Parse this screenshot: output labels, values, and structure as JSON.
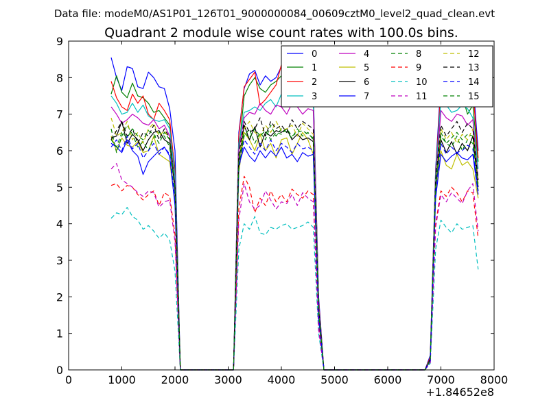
{
  "chart_data": {
    "type": "line",
    "suptitle": "Data file: modeM0/AS1P01_126T01_9000000084_00609cztM0_level2_quad_clean.evt",
    "title": "Quadrant 2 module wise count rates with 100.0s bins.",
    "xlabel": "",
    "ylabel": "",
    "x_offset_label": "+1.84652e8",
    "xlim": [
      0,
      8000
    ],
    "ylim": [
      0,
      9
    ],
    "xticks": [
      "0",
      "1000",
      "2000",
      "3000",
      "4000",
      "5000",
      "6000",
      "7000",
      "8000"
    ],
    "yticks": [
      "0",
      "1",
      "2",
      "3",
      "4",
      "5",
      "6",
      "7",
      "8",
      "9"
    ],
    "legend_position": "top-right",
    "colors": [
      "#0000ff",
      "#008000",
      "#ff0000",
      "#00bfbf",
      "#bf00bf",
      "#bfbf00",
      "#000000"
    ],
    "x": [
      800,
      900,
      1000,
      1100,
      1200,
      1300,
      1400,
      1500,
      1600,
      1700,
      1800,
      1900,
      2000,
      2100,
      2200,
      2300,
      2400,
      2500,
      2600,
      2700,
      2800,
      2900,
      3000,
      3100,
      3200,
      3300,
      3400,
      3500,
      3600,
      3700,
      3800,
      3900,
      4000,
      4100,
      4200,
      4300,
      4400,
      4500,
      4600,
      4700,
      4800,
      4900,
      5000,
      5100,
      5200,
      5300,
      5400,
      5500,
      5600,
      5700,
      5800,
      5900,
      6000,
      6100,
      6200,
      6300,
      6400,
      6500,
      6600,
      6700,
      6800,
      6900,
      7000,
      7100,
      7200,
      7300,
      7400,
      7500,
      7600,
      7700
    ],
    "series": [
      {
        "name": "0",
        "values": [
          8.55,
          8.0,
          7.65,
          8.3,
          8.25,
          7.75,
          7.7,
          8.15,
          8.0,
          7.75,
          7.7,
          7.15,
          6.0,
          0.0,
          0,
          0,
          0,
          0,
          0,
          0,
          0,
          0,
          0,
          0,
          6.5,
          7.7,
          8.1,
          8.2,
          7.8,
          8.05,
          7.9,
          8.0,
          8.3,
          8.05,
          8.5,
          7.9,
          8.2,
          7.95,
          7.7,
          2.0,
          0,
          0,
          0,
          0,
          0,
          0,
          0,
          0,
          0,
          0,
          0,
          0,
          0,
          0,
          0,
          0,
          0,
          0,
          0,
          0,
          0.4,
          5.5,
          7.9,
          7.9,
          7.5,
          7.4,
          7.9,
          7.7,
          7.95,
          6.0
        ]
      },
      {
        "name": "1",
        "values": [
          7.55,
          8.05,
          7.6,
          7.45,
          7.85,
          7.5,
          7.45,
          7.3,
          7.05,
          7.1,
          6.9,
          6.7,
          5.5,
          0.0,
          0,
          0,
          0,
          0,
          0,
          0,
          0,
          0,
          0,
          0,
          6.0,
          7.5,
          7.8,
          8.0,
          7.7,
          7.6,
          7.8,
          7.9,
          8.05,
          7.8,
          8.0,
          7.85,
          7.95,
          7.8,
          7.5,
          1.8,
          0,
          0,
          0,
          0,
          0,
          0,
          0,
          0,
          0,
          0,
          0,
          0,
          0,
          0,
          0,
          0,
          0,
          0,
          0,
          0,
          0.3,
          5.2,
          7.55,
          7.45,
          7.2,
          7.3,
          7.5,
          7.0,
          7.25,
          5.7
        ]
      },
      {
        "name": "2",
        "values": [
          7.9,
          7.45,
          7.2,
          7.1,
          7.55,
          7.3,
          7.5,
          7.0,
          6.85,
          7.3,
          7.1,
          6.85,
          5.4,
          0.0,
          0,
          0,
          0,
          0,
          0,
          0,
          0,
          0,
          0,
          0,
          6.4,
          7.75,
          7.95,
          8.15,
          7.25,
          7.4,
          7.6,
          7.8,
          8.35,
          7.95,
          8.05,
          7.9,
          8.15,
          7.9,
          7.6,
          1.9,
          0,
          0,
          0,
          0,
          0,
          0,
          0,
          0,
          0,
          0,
          0,
          0,
          0,
          0,
          0,
          0,
          0,
          0,
          0,
          0,
          0.35,
          5.4,
          7.7,
          7.6,
          7.3,
          7.4,
          7.55,
          7.45,
          7.7,
          5.8
        ]
      },
      {
        "name": "3",
        "values": [
          7.5,
          7.3,
          7.0,
          7.05,
          7.3,
          7.05,
          7.25,
          6.95,
          6.85,
          6.8,
          6.85,
          6.6,
          5.3,
          0.0,
          0,
          0,
          0,
          0,
          0,
          0,
          0,
          0,
          0,
          0,
          6.2,
          7.05,
          7.1,
          7.2,
          7.1,
          7.3,
          7.4,
          7.2,
          7.55,
          7.3,
          7.6,
          7.4,
          7.7,
          7.55,
          7.45,
          1.8,
          0,
          0,
          0,
          0,
          0,
          0,
          0,
          0,
          0,
          0,
          0,
          0,
          0,
          0,
          0,
          0,
          0,
          0,
          0,
          0,
          0.3,
          5.3,
          7.4,
          7.25,
          7.05,
          7.1,
          7.25,
          7.15,
          6.9,
          5.5
        ]
      },
      {
        "name": "4",
        "values": [
          7.2,
          7.0,
          6.75,
          6.85,
          7.0,
          6.9,
          6.75,
          6.7,
          6.85,
          6.6,
          6.7,
          6.4,
          5.1,
          0.0,
          0,
          0,
          0,
          0,
          0,
          0,
          0,
          0,
          0,
          0,
          6.0,
          6.9,
          7.05,
          7.0,
          7.3,
          7.1,
          7.0,
          7.25,
          7.2,
          7.0,
          7.3,
          7.2,
          7.0,
          7.15,
          7.1,
          1.7,
          0,
          0,
          0,
          0,
          0,
          0,
          0,
          0,
          0,
          0,
          0,
          0,
          0,
          0,
          0,
          0,
          0,
          0,
          0,
          0,
          0.3,
          5.1,
          7.1,
          6.9,
          6.8,
          7.0,
          6.95,
          6.7,
          6.85,
          5.2
        ]
      },
      {
        "name": "5",
        "values": [
          6.4,
          6.0,
          6.35,
          6.15,
          6.1,
          6.25,
          5.95,
          6.0,
          6.4,
          5.9,
          5.8,
          5.7,
          4.6,
          0.0,
          0,
          0,
          0,
          0,
          0,
          0,
          0,
          0,
          0,
          0,
          5.4,
          6.5,
          6.3,
          6.0,
          6.45,
          6.0,
          6.2,
          5.8,
          6.3,
          6.35,
          5.9,
          6.2,
          6.5,
          6.3,
          5.9,
          1.5,
          0,
          0,
          0,
          0,
          0,
          0,
          0,
          0,
          0,
          0,
          0,
          0,
          0,
          0,
          0,
          0,
          0,
          0,
          0,
          0,
          0.25,
          4.8,
          6.0,
          5.6,
          5.5,
          5.9,
          5.6,
          5.7,
          5.5,
          4.7
        ]
      },
      {
        "name": "6",
        "values": [
          6.35,
          6.4,
          6.8,
          6.2,
          6.45,
          6.3,
          6.0,
          6.3,
          6.5,
          6.55,
          6.3,
          6.2,
          4.9,
          0.0,
          0,
          0,
          0,
          0,
          0,
          0,
          0,
          0,
          0,
          0,
          5.7,
          6.7,
          6.3,
          6.65,
          6.1,
          6.5,
          6.4,
          6.55,
          6.5,
          6.6,
          6.3,
          6.45,
          6.3,
          6.35,
          6.25,
          1.6,
          0,
          0,
          0,
          0,
          0,
          0,
          0,
          0,
          0,
          0,
          0,
          0,
          0,
          0,
          0,
          0,
          0,
          0,
          0,
          0,
          0.28,
          5.0,
          6.3,
          5.95,
          6.25,
          5.9,
          6.2,
          6.0,
          6.4,
          5.0
        ]
      },
      {
        "name": "7",
        "values": [
          6.2,
          6.1,
          5.95,
          6.3,
          6.0,
          5.85,
          5.35,
          5.7,
          5.85,
          6.0,
          6.1,
          5.85,
          4.5,
          0.0,
          0,
          0,
          0,
          0,
          0,
          0,
          0,
          0,
          0,
          0,
          5.6,
          6.1,
          5.85,
          5.7,
          6.0,
          5.8,
          6.0,
          5.85,
          6.1,
          5.8,
          5.9,
          5.7,
          5.95,
          5.85,
          5.9,
          1.4,
          0,
          0,
          0,
          0,
          0,
          0,
          0,
          0,
          0,
          0,
          0,
          0,
          0,
          0,
          0,
          0,
          0,
          0,
          0,
          0,
          0.25,
          4.7,
          5.9,
          5.7,
          5.85,
          5.95,
          5.8,
          5.75,
          5.9,
          4.8
        ]
      },
      {
        "name": "8",
        "values": [
          6.6,
          5.95,
          6.4,
          6.7,
          6.45,
          6.1,
          6.25,
          6.0,
          6.35,
          6.5,
          6.4,
          6.1,
          4.9,
          0.0,
          0,
          0,
          0,
          0,
          0,
          0,
          0,
          0,
          0,
          0,
          5.6,
          6.4,
          6.6,
          6.2,
          6.5,
          6.3,
          6.7,
          6.4,
          6.6,
          6.5,
          6.35,
          6.6,
          6.4,
          6.5,
          6.3,
          1.6,
          0,
          0,
          0,
          0,
          0,
          0,
          0,
          0,
          0,
          0,
          0,
          0,
          0,
          0,
          0,
          0,
          0,
          0,
          0,
          0,
          0.28,
          5.0,
          6.5,
          6.2,
          6.1,
          6.4,
          6.0,
          6.3,
          6.2,
          4.9
        ]
      },
      {
        "name": "9",
        "values": [
          5.05,
          5.1,
          4.9,
          5.05,
          5.0,
          4.8,
          4.65,
          4.8,
          4.9,
          4.5,
          4.85,
          4.75,
          3.7,
          0.0,
          0,
          0,
          0,
          0,
          0,
          0,
          0,
          0,
          0,
          0,
          4.4,
          5.3,
          5.0,
          4.3,
          4.7,
          4.5,
          4.9,
          4.6,
          4.8,
          4.6,
          4.95,
          4.8,
          4.7,
          4.9,
          4.8,
          1.2,
          0,
          0,
          0,
          0,
          0,
          0,
          0,
          0,
          0,
          0,
          0,
          0,
          0,
          0,
          0,
          0,
          0,
          0,
          0,
          0,
          0.2,
          4.0,
          4.9,
          4.75,
          5.0,
          4.85,
          4.6,
          4.9,
          4.85,
          3.6
        ]
      },
      {
        "name": "10",
        "values": [
          4.15,
          4.3,
          4.25,
          4.45,
          4.2,
          4.1,
          3.85,
          3.95,
          3.8,
          3.6,
          3.75,
          3.55,
          2.7,
          0.0,
          0,
          0,
          0,
          0,
          0,
          0,
          0,
          0,
          0,
          0,
          3.3,
          4.0,
          3.85,
          4.2,
          3.75,
          3.7,
          3.9,
          3.85,
          3.95,
          4.0,
          3.85,
          3.9,
          3.95,
          4.05,
          3.9,
          1.0,
          0,
          0,
          0,
          0,
          0,
          0,
          0,
          0,
          0,
          0,
          0,
          0,
          0,
          0,
          0,
          0,
          0,
          0,
          0,
          0,
          0.18,
          3.3,
          4.1,
          3.9,
          3.75,
          4.0,
          3.85,
          3.9,
          3.95,
          2.75
        ]
      },
      {
        "name": "11",
        "values": [
          5.5,
          5.65,
          5.2,
          5.1,
          5.0,
          4.85,
          4.75,
          4.9,
          4.85,
          4.45,
          4.6,
          4.65,
          3.5,
          0.0,
          0,
          0,
          0,
          0,
          0,
          0,
          0,
          0,
          0,
          0,
          4.1,
          5.1,
          4.6,
          4.4,
          4.5,
          4.9,
          4.65,
          4.4,
          4.6,
          4.55,
          4.8,
          4.5,
          4.85,
          4.7,
          4.6,
          1.1,
          0,
          0,
          0,
          0,
          0,
          0,
          0,
          0,
          0,
          0,
          0,
          0,
          0,
          0,
          0,
          0,
          0,
          0,
          0,
          0,
          0.2,
          3.9,
          4.8,
          4.6,
          4.85,
          4.7,
          4.55,
          4.9,
          5.1,
          3.8
        ]
      },
      {
        "name": "12",
        "values": [
          6.9,
          6.4,
          6.5,
          6.8,
          6.3,
          6.5,
          6.2,
          6.6,
          6.75,
          6.4,
          6.55,
          6.3,
          5.0,
          0.0,
          0,
          0,
          0,
          0,
          0,
          0,
          0,
          0,
          0,
          0,
          5.8,
          6.6,
          6.8,
          6.5,
          6.4,
          6.7,
          6.5,
          6.8,
          6.55,
          6.6,
          6.7,
          6.4,
          6.75,
          6.6,
          6.45,
          1.6,
          0,
          0,
          0,
          0,
          0,
          0,
          0,
          0,
          0,
          0,
          0,
          0,
          0,
          0,
          0,
          0,
          0,
          0,
          0,
          0,
          0.3,
          5.1,
          6.6,
          6.3,
          6.5,
          6.2,
          6.45,
          6.3,
          6.6,
          5.1
        ]
      },
      {
        "name": "13",
        "values": [
          6.3,
          6.55,
          6.8,
          6.4,
          6.6,
          6.2,
          6.5,
          6.4,
          6.7,
          6.3,
          6.6,
          6.35,
          5.0,
          0.0,
          0,
          0,
          0,
          0,
          0,
          0,
          0,
          0,
          0,
          0,
          5.9,
          6.8,
          6.5,
          6.6,
          6.9,
          6.4,
          6.8,
          6.6,
          6.7,
          6.5,
          6.85,
          6.6,
          6.8,
          6.7,
          6.6,
          1.7,
          0,
          0,
          0,
          0,
          0,
          0,
          0,
          0,
          0,
          0,
          0,
          0,
          0,
          0,
          0,
          0,
          0,
          0,
          0,
          0,
          0.3,
          5.2,
          6.7,
          6.4,
          6.6,
          6.8,
          6.5,
          6.75,
          6.6,
          5.2
        ]
      },
      {
        "name": "14",
        "values": [
          6.1,
          6.3,
          6.0,
          6.4,
          6.05,
          6.2,
          5.8,
          6.0,
          6.2,
          5.9,
          6.1,
          5.9,
          4.7,
          0.0,
          0,
          0,
          0,
          0,
          0,
          0,
          0,
          0,
          0,
          0,
          5.5,
          6.3,
          6.1,
          5.9,
          6.2,
          6.0,
          6.3,
          6.0,
          6.2,
          6.1,
          5.95,
          6.2,
          6.05,
          6.1,
          6.0,
          1.5,
          0,
          0,
          0,
          0,
          0,
          0,
          0,
          0,
          0,
          0,
          0,
          0,
          0,
          0,
          0,
          0,
          0,
          0,
          0,
          0,
          0.25,
          4.9,
          6.2,
          5.9,
          6.1,
          5.95,
          6.0,
          6.15,
          6.05,
          4.9
        ]
      },
      {
        "name": "15",
        "values": [
          6.3,
          6.1,
          6.5,
          6.35,
          6.6,
          6.4,
          6.3,
          6.55,
          6.45,
          6.2,
          6.5,
          6.3,
          5.0,
          0.0,
          0,
          0,
          0,
          0,
          0,
          0,
          0,
          0,
          0,
          0,
          5.7,
          6.5,
          6.35,
          6.6,
          6.4,
          6.55,
          6.3,
          6.5,
          6.45,
          6.6,
          6.4,
          6.5,
          6.55,
          6.45,
          6.35,
          1.6,
          0,
          0,
          0,
          0,
          0,
          0,
          0,
          0,
          0,
          0,
          0,
          0,
          0,
          0,
          0,
          0,
          0,
          0,
          0,
          0,
          0.28,
          5.0,
          6.4,
          6.2,
          6.35,
          6.5,
          6.3,
          6.45,
          6.4,
          5.0
        ]
      }
    ]
  }
}
